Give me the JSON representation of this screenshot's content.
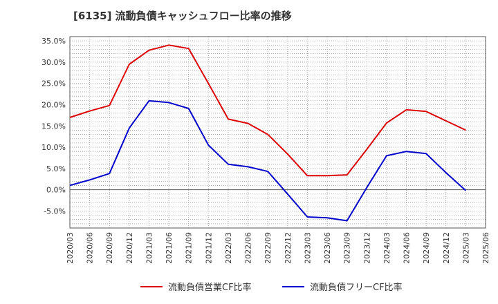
{
  "chart_data": {
    "type": "line",
    "title": "[6135]  流動負債キャッシュフロー比率の推移",
    "xlabel": "",
    "ylabel": "",
    "ylim": [
      -9,
      36
    ],
    "y_ticks": [
      35,
      30,
      25,
      20,
      15,
      10,
      5,
      0,
      -5
    ],
    "y_tick_labels": [
      "35.0%",
      "30.0%",
      "25.0%",
      "20.0%",
      "15.0%",
      "10.0%",
      "5.0%",
      "0.0%",
      "-5.0%"
    ],
    "categories": [
      "2020/03",
      "2020/06",
      "2020/09",
      "2020/12",
      "2021/03",
      "2021/06",
      "2021/09",
      "2021/12",
      "2022/03",
      "2022/06",
      "2022/09",
      "2022/12",
      "2023/03",
      "2023/06",
      "2023/09",
      "2023/12",
      "2024/03",
      "2024/06",
      "2024/09",
      "2024/12",
      "2025/03",
      "2025/06"
    ],
    "grid": true,
    "legend_position": "bottom",
    "series": [
      {
        "name": "流動負債営業CF比率",
        "color": "#dd0000",
        "values": [
          17.0,
          18.5,
          19.8,
          29.5,
          32.8,
          34.0,
          33.2,
          25.0,
          16.6,
          15.6,
          13.0,
          8.4,
          3.3,
          3.3,
          3.5,
          9.5,
          15.7,
          18.8,
          18.4,
          16.2,
          14.0,
          null
        ]
      },
      {
        "name": "流動負債フリーCF比率",
        "color": "#0000cc",
        "values": [
          1.0,
          2.3,
          3.8,
          14.5,
          20.9,
          20.5,
          19.1,
          10.5,
          6.0,
          5.4,
          4.3,
          -1.0,
          -6.4,
          -6.6,
          -7.3,
          0.5,
          8.0,
          9.0,
          8.5,
          4.0,
          -0.2,
          null
        ]
      }
    ]
  }
}
